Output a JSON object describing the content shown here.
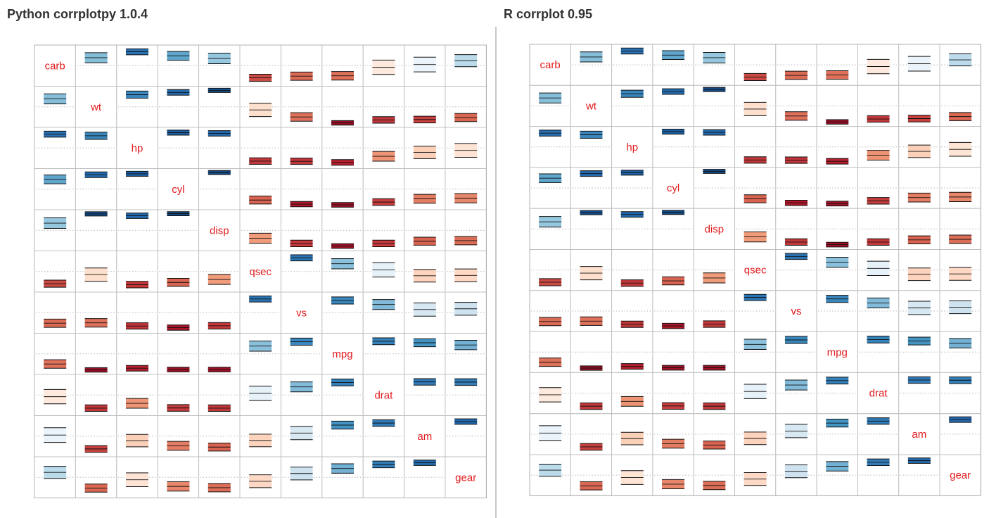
{
  "panels": [
    {
      "title": "Python corrplotpy 1.0.4"
    },
    {
      "title": "R corrplot 0.95"
    }
  ],
  "colors": {
    "label": "#e31a1c",
    "grid": "#c0c0c0",
    "dotted": "#b8b8b8",
    "positive_scale": [
      "#f7fbff",
      "#d1e5f0",
      "#92c5de",
      "#4393c3",
      "#2166ac",
      "#053061"
    ],
    "negative_scale": [
      "#fff5f0",
      "#fddbc7",
      "#f4a582",
      "#d6604d",
      "#b2182b",
      "#67001f"
    ]
  },
  "chart_data": {
    "type": "heatmap",
    "method": "confidence-interval bars (upper/lower bounds) per cell",
    "variables": [
      "carb",
      "wt",
      "hp",
      "cyl",
      "disp",
      "qsec",
      "vs",
      "mpg",
      "drat",
      "am",
      "gear"
    ],
    "matrix": [
      [
        1.0,
        0.43,
        0.75,
        0.53,
        0.39,
        -0.66,
        -0.57,
        -0.55,
        -0.09,
        0.06,
        0.27
      ],
      [
        0.43,
        1.0,
        0.66,
        0.78,
        0.89,
        -0.17,
        -0.55,
        -0.87,
        -0.71,
        -0.69,
        -0.58
      ],
      [
        0.75,
        0.66,
        1.0,
        0.83,
        0.79,
        -0.71,
        -0.72,
        -0.78,
        -0.45,
        -0.24,
        -0.13
      ],
      [
        0.53,
        0.78,
        0.83,
        1.0,
        0.9,
        -0.59,
        -0.81,
        -0.85,
        -0.7,
        -0.52,
        -0.49
      ],
      [
        0.39,
        0.89,
        0.79,
        0.9,
        1.0,
        -0.43,
        -0.71,
        -0.85,
        -0.71,
        -0.59,
        -0.56
      ],
      [
        -0.66,
        -0.17,
        -0.71,
        -0.59,
        -0.43,
        1.0,
        0.74,
        0.42,
        0.09,
        -0.23,
        -0.21
      ],
      [
        -0.57,
        -0.55,
        -0.72,
        -0.81,
        -0.71,
        0.74,
        1.0,
        0.66,
        0.44,
        0.17,
        0.21
      ],
      [
        -0.55,
        -0.87,
        -0.78,
        -0.85,
        -0.85,
        0.42,
        0.66,
        1.0,
        0.68,
        0.6,
        0.48
      ],
      [
        -0.09,
        -0.71,
        -0.45,
        -0.7,
        -0.71,
        0.09,
        0.44,
        0.68,
        1.0,
        0.71,
        0.7
      ],
      [
        0.06,
        -0.69,
        -0.24,
        -0.52,
        -0.59,
        -0.23,
        0.17,
        0.6,
        0.71,
        1.0,
        0.79
      ],
      [
        0.27,
        -0.58,
        -0.13,
        -0.49,
        -0.56,
        -0.21,
        0.21,
        0.48,
        0.7,
        0.79,
        1.0
      ]
    ],
    "value_range": [
      -1,
      1
    ],
    "legend": "none",
    "grid": true
  }
}
